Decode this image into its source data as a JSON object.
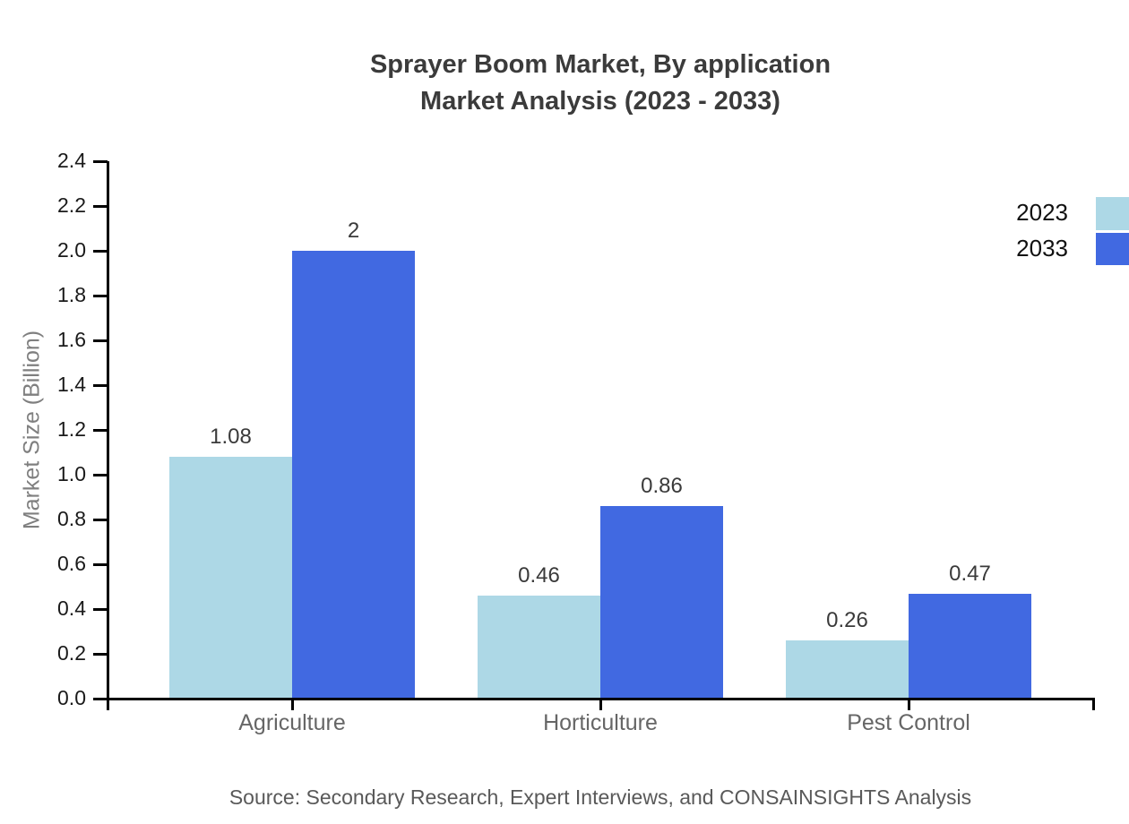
{
  "chart_data": {
    "type": "bar",
    "title_lines": [
      "Sprayer Boom Market, By application",
      "Market Analysis (2023 - 2033)"
    ],
    "categories": [
      "Agriculture",
      "Horticulture",
      "Pest Control"
    ],
    "series": [
      {
        "name": "2023",
        "color": "#ADD8E6",
        "values": [
          1.08,
          0.46,
          0.26
        ],
        "value_labels": [
          "1.08",
          "0.46",
          "0.26"
        ]
      },
      {
        "name": "2033",
        "color": "#4169E1",
        "values": [
          2,
          0.86,
          0.47
        ],
        "value_labels": [
          "2",
          "0.86",
          "0.47"
        ]
      }
    ],
    "xlabel": "",
    "ylabel": "Market Size (Billion)",
    "ylim": [
      0,
      2.4
    ],
    "ytick_labels": [
      "0.0",
      "0.2",
      "0.4",
      "0.6",
      "0.8",
      "1.0",
      "1.2",
      "1.4",
      "1.6",
      "1.8",
      "2.0",
      "2.2",
      "2.4"
    ],
    "grid": false,
    "legend_position": "top-right-edge",
    "axis_color": "#000000",
    "source": "Source: Secondary Research, Expert Interviews, and CONSAINSIGHTS Analysis"
  }
}
